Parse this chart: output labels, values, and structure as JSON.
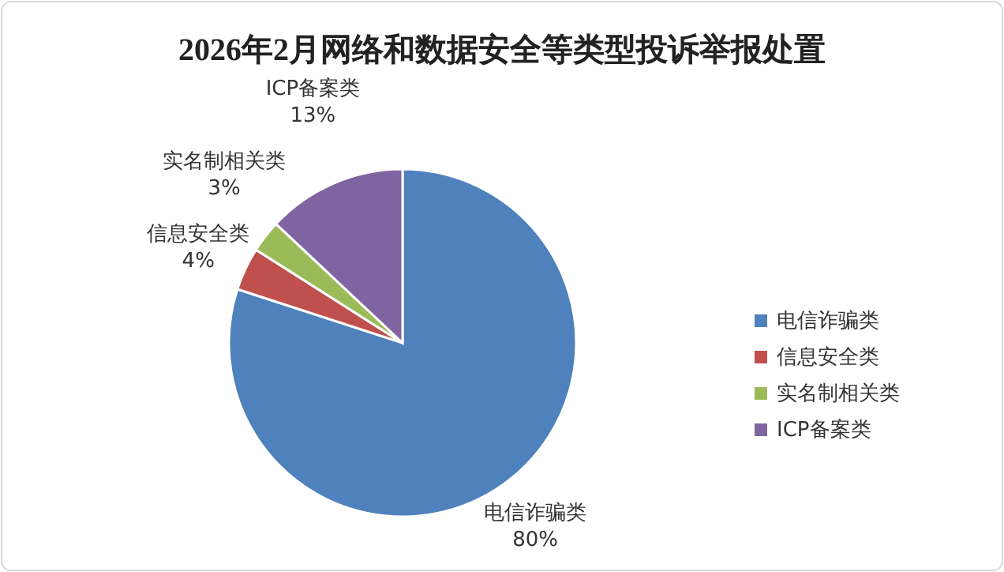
{
  "chart_data": {
    "type": "pie",
    "title": "2026年2月网络和数据安全等类型投诉举报处置",
    "categories": [
      "电信诈骗类",
      "信息安全类",
      "实名制相关类",
      "ICP备案类"
    ],
    "values": [
      80,
      4,
      3,
      13
    ],
    "value_labels": [
      "80%",
      "4%",
      "3%",
      "13%"
    ],
    "colors": [
      "#4f81bd",
      "#c0504d",
      "#9bbb59",
      "#8064a2"
    ],
    "legend": "right"
  }
}
